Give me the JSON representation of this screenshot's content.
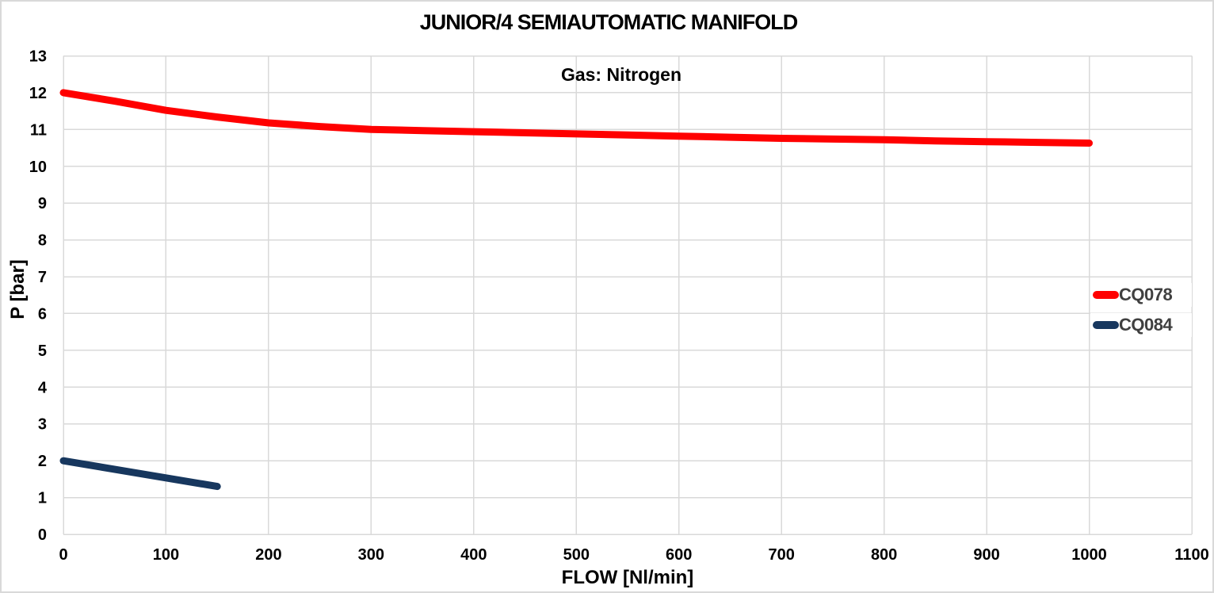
{
  "chart_data": {
    "type": "line",
    "title": "JUNIOR/4 SEMIAUTOMATIC MANIFOLD",
    "annotation": "Gas: Nitrogen",
    "xlabel": "FLOW [Nl/min]",
    "ylabel": "P [bar]",
    "xlim": [
      0,
      1100
    ],
    "ylim": [
      0,
      13
    ],
    "x_ticks": [
      0,
      100,
      200,
      300,
      400,
      500,
      600,
      700,
      800,
      900,
      1000,
      1100
    ],
    "y_ticks": [
      0,
      1,
      2,
      3,
      4,
      5,
      6,
      7,
      8,
      9,
      10,
      11,
      12,
      13
    ],
    "grid": true,
    "legend_position": "right-inside",
    "colors": {
      "grid": "#d9d9d9",
      "title_text": "#000000",
      "tick_text": "#000000",
      "legend_text": "#404040",
      "background": "#ffffff"
    },
    "series": [
      {
        "name": "CQ078",
        "color": "#ff0000",
        "x": [
          0,
          50,
          100,
          150,
          200,
          250,
          300,
          350,
          400,
          450,
          500,
          550,
          600,
          650,
          700,
          750,
          800,
          850,
          900,
          950,
          1000
        ],
        "y": [
          12.0,
          11.77,
          11.52,
          11.34,
          11.18,
          11.08,
          11.0,
          10.97,
          10.94,
          10.91,
          10.88,
          10.85,
          10.82,
          10.79,
          10.76,
          10.74,
          10.72,
          10.69,
          10.67,
          10.65,
          10.63
        ]
      },
      {
        "name": "CQ084",
        "color": "#17375e",
        "x": [
          0,
          150
        ],
        "y": [
          2.0,
          1.3
        ]
      }
    ]
  }
}
